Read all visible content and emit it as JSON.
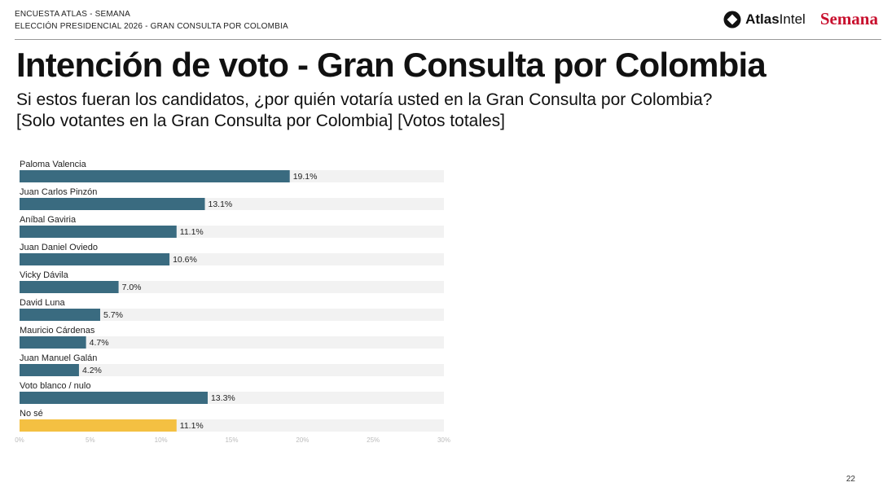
{
  "header": {
    "line1": "ENCUESTA ATLAS - SEMANA",
    "line2": "ELECCIÓN PRESIDENCIAL 2026 - GRAN CONSULTA POR COLOMBIA",
    "logo_atlas_bold": "Atlas",
    "logo_atlas_light": "Intel",
    "logo_semana": "Semana"
  },
  "title": "Intención de voto - Gran Consulta por Colombia",
  "subtitle_line1": "Si estos fueran los candidatos, ¿por quién votaría usted en la Gran Consulta por Colombia?",
  "subtitle_line2": "[Solo votantes en la Gran Consulta por Colombia] [Votos totales]",
  "page_number": "22",
  "colors": {
    "bar": "#3a6b80",
    "bar_highlight": "#f4c042",
    "track": "#f2f2f2",
    "brand_red": "#c8102e"
  },
  "chart_data": {
    "type": "bar",
    "orientation": "horizontal",
    "categories": [
      "Paloma Valencia",
      "Juan Carlos Pinzón",
      "Aníbal Gaviria",
      "Juan Daniel Oviedo",
      "Vicky Dávila",
      "David Luna",
      "Mauricio Cárdenas",
      "Juan Manuel Galán",
      "Voto blanco / nulo",
      "No sé"
    ],
    "values": [
      19.1,
      13.1,
      11.1,
      10.6,
      7.0,
      5.7,
      4.7,
      4.2,
      13.3,
      11.1
    ],
    "value_labels": [
      "19.1%",
      "13.1%",
      "11.1%",
      "10.6%",
      "7.0%",
      "5.7%",
      "4.7%",
      "4.2%",
      "13.3%",
      "11.1%"
    ],
    "highlight_index": 9,
    "xlim": [
      0,
      30
    ],
    "xticks": [
      0,
      5,
      10,
      15,
      20,
      25,
      30
    ],
    "xtick_labels": [
      "0%",
      "5%",
      "10%",
      "15%",
      "20%",
      "25%",
      "30%"
    ],
    "grid": false
  }
}
